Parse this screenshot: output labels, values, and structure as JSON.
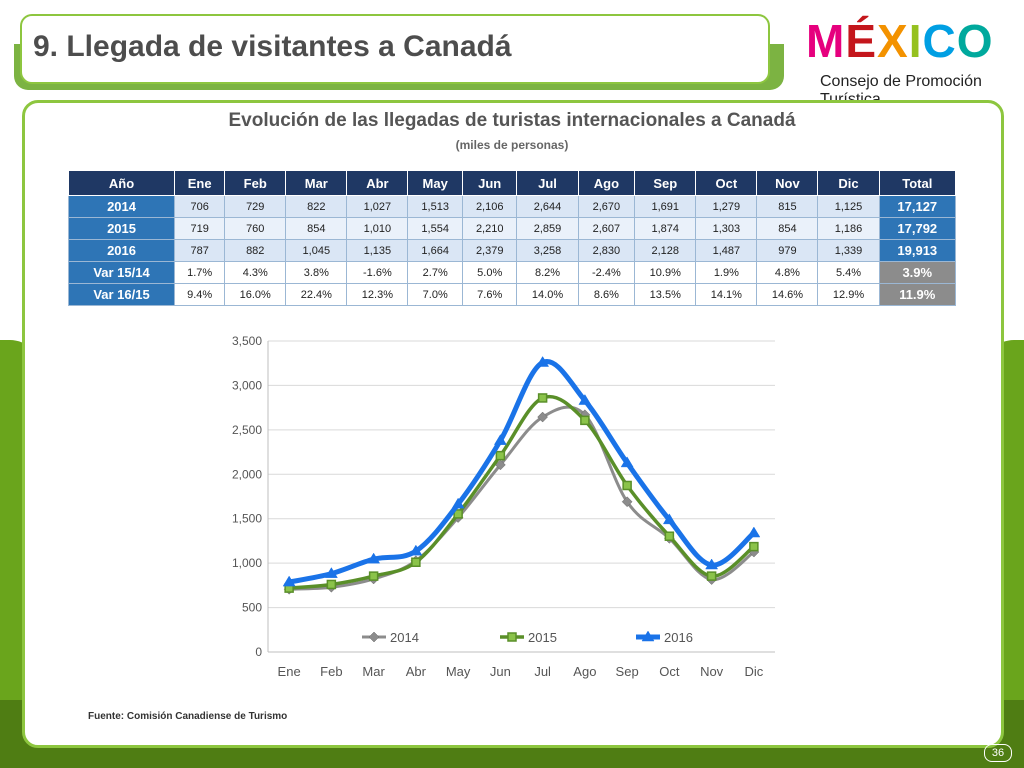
{
  "header": {
    "title": "9. Llegada de visitantes a Canadá",
    "logo_letters": [
      "M",
      "É",
      "X",
      "I",
      "C",
      "O"
    ],
    "logo_colors": [
      "#e6007e",
      "#c4161c",
      "#f39200",
      "#95c11f",
      "#009fe3",
      "#00a99d"
    ],
    "logo_subtitle": "Consejo de Promoción Turística"
  },
  "panel": {
    "title": "Evolución de las llegadas de turistas internacionales a Canadá",
    "subtitle": "(miles de personas)"
  },
  "table": {
    "headers": [
      "Año",
      "Ene",
      "Feb",
      "Mar",
      "Abr",
      "May",
      "Jun",
      "Jul",
      "Ago",
      "Sep",
      "Oct",
      "Nov",
      "Dic",
      "Total"
    ],
    "rows": [
      [
        "2014",
        "706",
        "729",
        "822",
        "1,027",
        "1,513",
        "2,106",
        "2,644",
        "2,670",
        "1,691",
        "1,279",
        "815",
        "1,125",
        "17,127"
      ],
      [
        "2015",
        "719",
        "760",
        "854",
        "1,010",
        "1,554",
        "2,210",
        "2,859",
        "2,607",
        "1,874",
        "1,303",
        "854",
        "1,186",
        "17,792"
      ],
      [
        "2016",
        "787",
        "882",
        "1,045",
        "1,135",
        "1,664",
        "2,379",
        "3,258",
        "2,830",
        "2,128",
        "1,487",
        "979",
        "1,339",
        "19,913"
      ],
      [
        "Var 15/14",
        "1.7%",
        "4.3%",
        "3.8%",
        "-1.6%",
        "2.7%",
        "5.0%",
        "8.2%",
        "-2.4%",
        "10.9%",
        "1.9%",
        "4.8%",
        "5.4%",
        "3.9%"
      ],
      [
        "Var 16/15",
        "9.4%",
        "16.0%",
        "22.4%",
        "12.3%",
        "7.0%",
        "7.6%",
        "14.0%",
        "8.6%",
        "13.5%",
        "14.1%",
        "14.6%",
        "12.9%",
        "11.9%"
      ]
    ]
  },
  "chart_data": {
    "type": "line",
    "categories": [
      "Ene",
      "Feb",
      "Mar",
      "Abr",
      "May",
      "Jun",
      "Jul",
      "Ago",
      "Sep",
      "Oct",
      "Nov",
      "Dic"
    ],
    "series": [
      {
        "name": "2014",
        "color": "#8c8c8c",
        "marker": "diamond",
        "values": [
          706,
          729,
          822,
          1027,
          1513,
          2106,
          2644,
          2670,
          1691,
          1279,
          815,
          1125
        ]
      },
      {
        "name": "2015",
        "color": "#5a8f29",
        "marker": "square",
        "values": [
          719,
          760,
          854,
          1010,
          1554,
          2210,
          2859,
          2607,
          1874,
          1303,
          854,
          1186
        ]
      },
      {
        "name": "2016",
        "color": "#1a73e8",
        "marker": "triangle",
        "values": [
          787,
          882,
          1045,
          1135,
          1664,
          2379,
          3258,
          2830,
          2128,
          1487,
          979,
          1339
        ]
      }
    ],
    "yticks": [
      "0",
      "500",
      "1,000",
      "1,500",
      "2,000",
      "2,500",
      "3,000",
      "3,500"
    ],
    "ylim": [
      0,
      3500
    ],
    "grid": true,
    "legend_position": "inside-bottom"
  },
  "footer": {
    "source": "Fuente: Comisión Canadiense de Turismo",
    "page": "36"
  }
}
